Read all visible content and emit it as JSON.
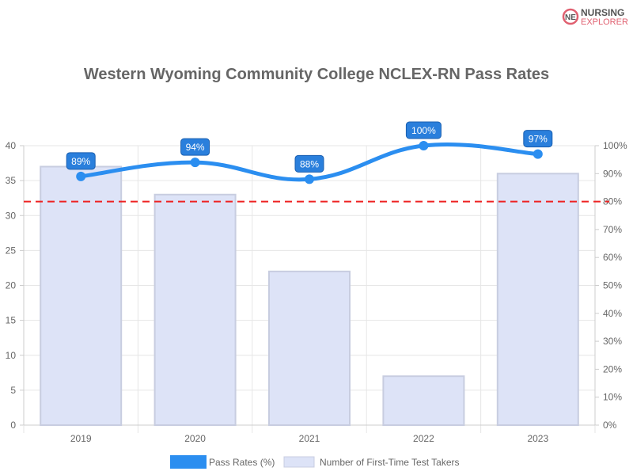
{
  "logo": {
    "line1": "NURSING",
    "line2": "EXPLORER",
    "mark": "NE"
  },
  "chart_data": {
    "type": "bar",
    "title": "Western Wyoming Community College NCLEX-RN Pass Rates",
    "categories": [
      "2019",
      "2020",
      "2021",
      "2022",
      "2023"
    ],
    "series": [
      {
        "name": "Number of First-Time Test Takers",
        "type": "bar",
        "axis": "left",
        "values": [
          37,
          33,
          22,
          7,
          36
        ],
        "color": "#dde3f7"
      },
      {
        "name": "Pass Rates (%)",
        "type": "line",
        "axis": "right",
        "values": [
          89,
          94,
          88,
          100,
          97
        ],
        "labels": [
          "89%",
          "94%",
          "88%",
          "100%",
          "97%"
        ],
        "color": "#2b8ef0"
      }
    ],
    "left_axis": {
      "ylim": [
        0,
        40
      ],
      "ticks": [
        "0",
        "5",
        "10",
        "15",
        "20",
        "25",
        "30",
        "35",
        "40"
      ]
    },
    "right_axis": {
      "ylim": [
        0,
        100
      ],
      "ticks": [
        "0%",
        "10%",
        "20%",
        "30%",
        "40%",
        "50%",
        "60%",
        "70%",
        "80%",
        "90%",
        "100%"
      ]
    },
    "reference_line": {
      "value": 80,
      "axis": "right",
      "color": "#ee2222"
    },
    "legend": {
      "position": "bottom",
      "entries": [
        "Pass Rates (%)",
        "Number of First-Time Test Takers"
      ]
    },
    "grid": true
  }
}
